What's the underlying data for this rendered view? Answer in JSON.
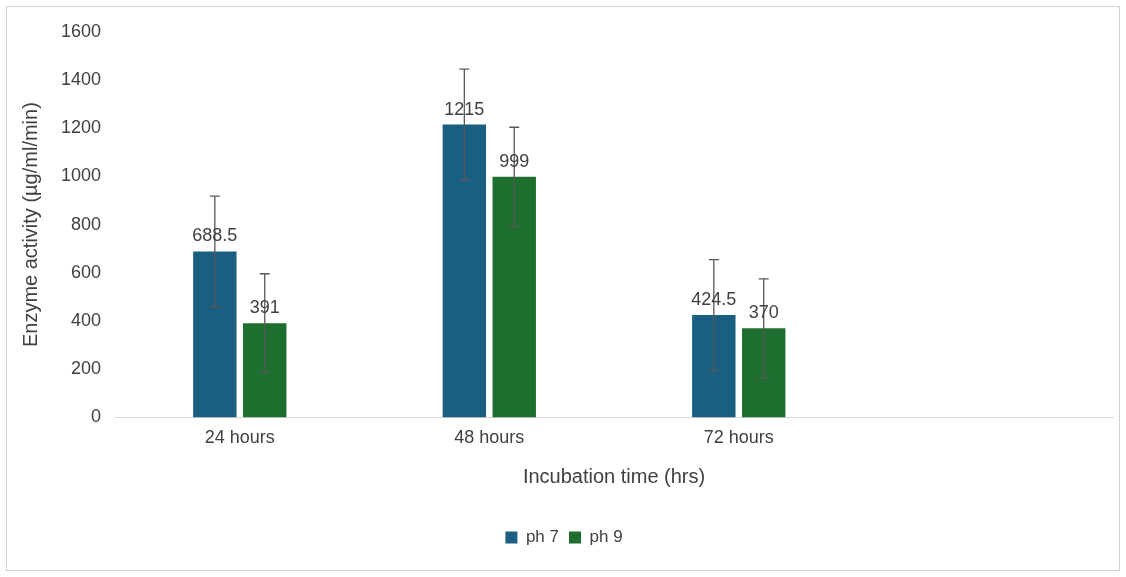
{
  "chart_data": {
    "type": "bar",
    "xlabel": "Incubation time (hrs)",
    "ylabel": "Enzyme activity (µg/ml/min)",
    "categories": [
      "24 hours",
      "48 hours",
      "72 hours",
      null
    ],
    "series": [
      {
        "name": "ph 7",
        "color": "#1a5e82",
        "values": [
          688.5,
          1215,
          424.5,
          null
        ],
        "errors": [
          230,
          230,
          230,
          null
        ]
      },
      {
        "name": "ph 9",
        "color": "#1e6f2f",
        "values": [
          391,
          999,
          370,
          null
        ],
        "errors": [
          205,
          205,
          205,
          null
        ]
      }
    ],
    "ylim": [
      0,
      1600
    ],
    "yticks": [
      0,
      200,
      400,
      600,
      800,
      1000,
      1200,
      1400,
      1600
    ],
    "grid": false,
    "legend": "bottom",
    "data_labels": true
  }
}
